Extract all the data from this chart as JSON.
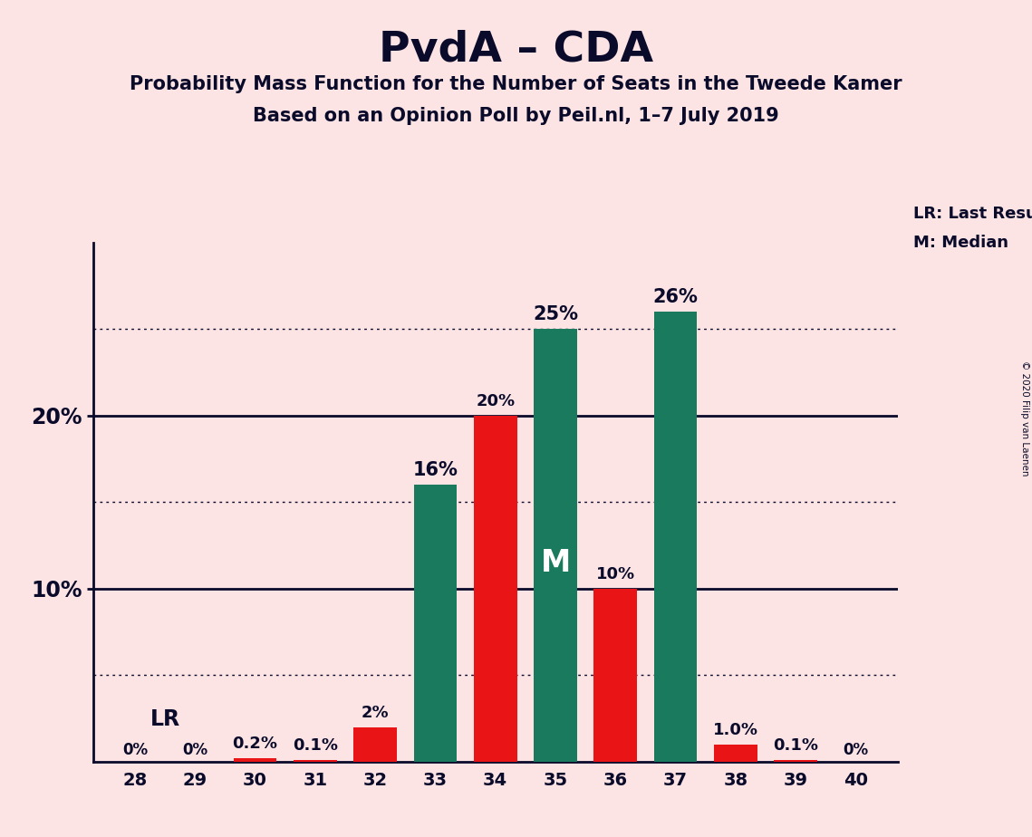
{
  "title": "PvdA – CDA",
  "subtitle1": "Probability Mass Function for the Number of Seats in the Tweede Kamer",
  "subtitle2": "Based on an Opinion Poll by Peil.nl, 1–7 July 2019",
  "copyright": "© 2020 Filip van Laenen",
  "x_seats": [
    28,
    29,
    30,
    31,
    32,
    33,
    34,
    35,
    36,
    37,
    38,
    39,
    40
  ],
  "green_values": [
    0,
    0,
    0,
    0,
    0,
    16,
    0,
    25,
    0,
    26,
    0,
    0,
    0
  ],
  "red_values": [
    0,
    0,
    0.2,
    0.1,
    2,
    0,
    20,
    0,
    10,
    0,
    1.0,
    0.1,
    0
  ],
  "green_labels": [
    "",
    "",
    "",
    "",
    "",
    "16%",
    "",
    "25%",
    "",
    "26%",
    "",
    "",
    ""
  ],
  "red_labels": [
    "0%",
    "0%",
    "0.2%",
    "0.1%",
    "2%",
    "",
    "20%",
    "",
    "10%",
    "",
    "1.0%",
    "0.1%",
    "0%"
  ],
  "green_color": "#1a7a5e",
  "red_color": "#e81416",
  "background_color": "#fce4e4",
  "text_color": "#0a0a2a",
  "ylim": [
    0,
    30
  ],
  "dotted_lines": [
    5,
    15,
    25
  ],
  "solid_lines": [
    10,
    20
  ],
  "legend_lr": "LR: Last Result",
  "legend_m": "M: Median"
}
